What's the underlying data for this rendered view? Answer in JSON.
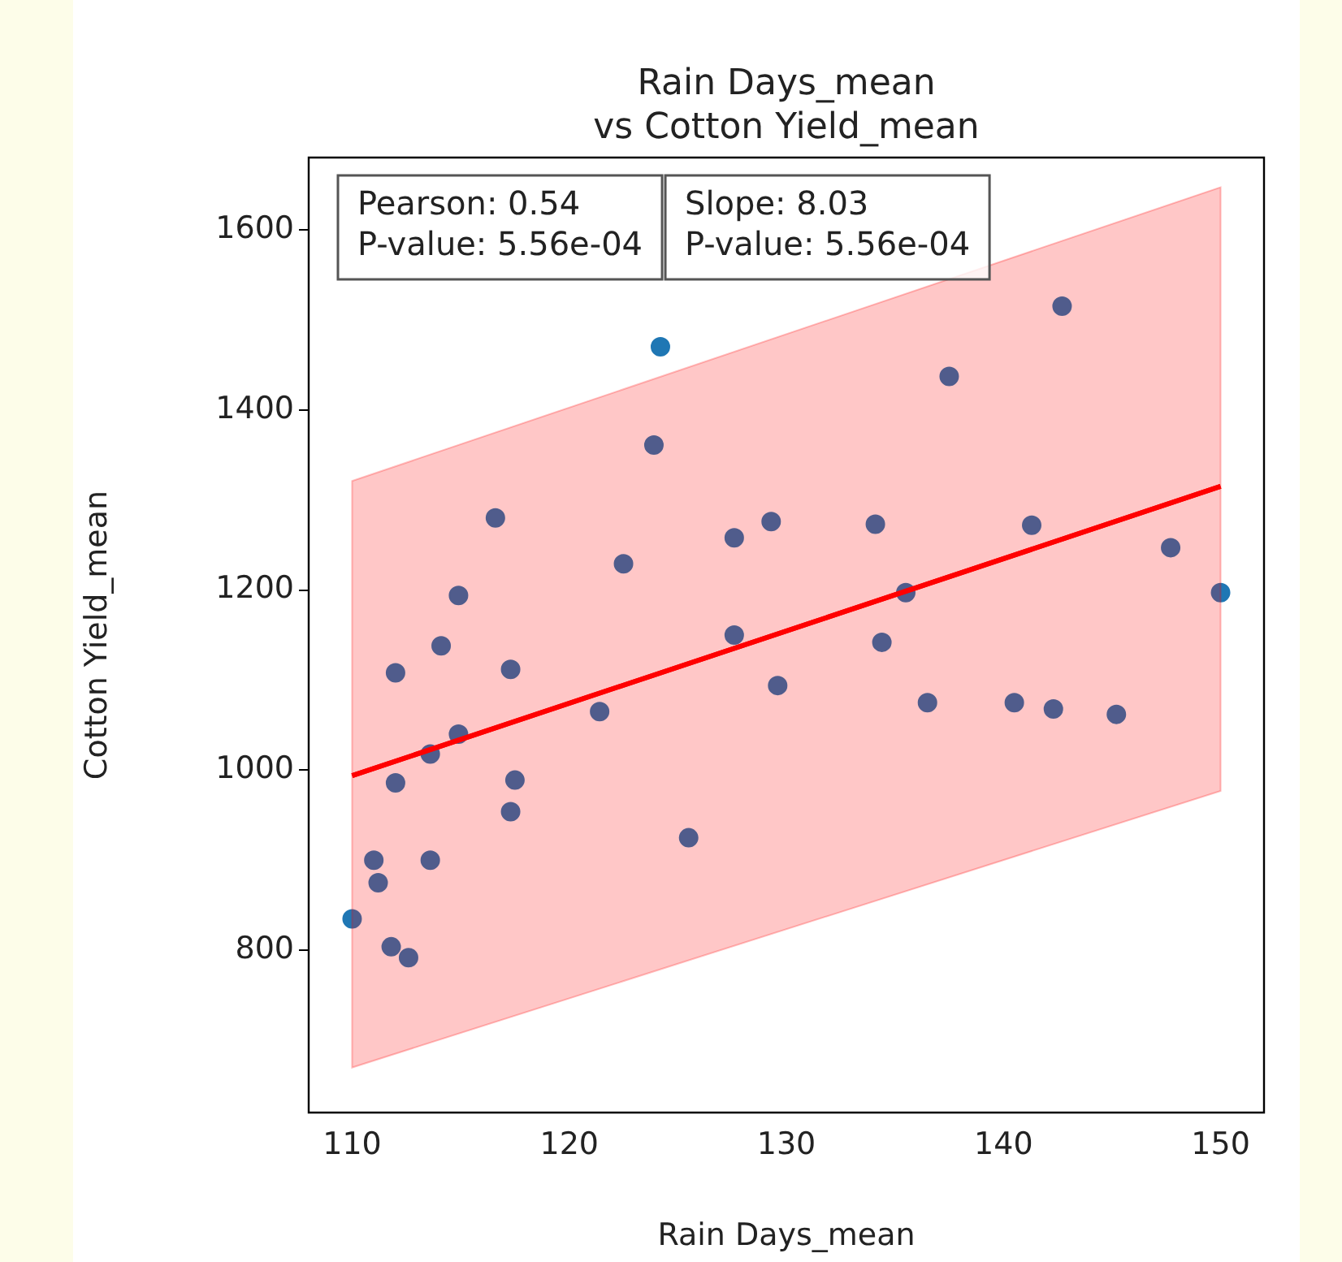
{
  "chart_data": {
    "type": "scatter",
    "title": "Rain Days_mean\nvs Cotton Yield_mean",
    "xlabel": "Rain Days_mean",
    "ylabel": "Cotton Yield_mean",
    "annotations": [
      "Pearson: 0.54\nP-value: 5.56e-04",
      "Slope: 8.03\nP-value: 5.56e-04"
    ],
    "xlim": [
      108,
      152
    ],
    "xticks": [
      110,
      120,
      130,
      140,
      150
    ],
    "ylim": [
      620,
      1680
    ],
    "yticks": [
      800,
      1000,
      1200,
      1400,
      1600
    ],
    "grid": false,
    "legend": false,
    "series": [
      {
        "marker": "circle",
        "color": "#1f77b4",
        "x": [
          124.2,
          123.9,
          116.6,
          127.6,
          129.3,
          122.5,
          114.9,
          114.1,
          127.6,
          112.0,
          117.3,
          114.9,
          113.6,
          121.4,
          129.6,
          112.0,
          117.5,
          117.3,
          125.5,
          111.0,
          113.6,
          111.2,
          110.0,
          111.8,
          112.6,
          142.7,
          137.5,
          134.1,
          141.3,
          147.7,
          135.5,
          150.0,
          134.4,
          136.5,
          140.5,
          142.3,
          145.2
        ],
        "values": [
          1470,
          1361,
          1280,
          1258,
          1276,
          1229,
          1194,
          1138,
          1150,
          1108,
          1112,
          1040,
          1018,
          1065,
          1094,
          986,
          989,
          954,
          925,
          900,
          900,
          875,
          835,
          804,
          792,
          1515,
          1437,
          1273,
          1272,
          1247,
          1197,
          1197,
          1142,
          1075,
          1075,
          1068,
          1062
        ]
      },
      {
        "type": "line",
        "marker": "none",
        "color": "#ff0000",
        "x": [
          110,
          150
        ],
        "values": [
          994,
          1315
        ],
        "lower": [
          670,
          977
        ],
        "upper": [
          1321,
          1647
        ]
      }
    ]
  }
}
